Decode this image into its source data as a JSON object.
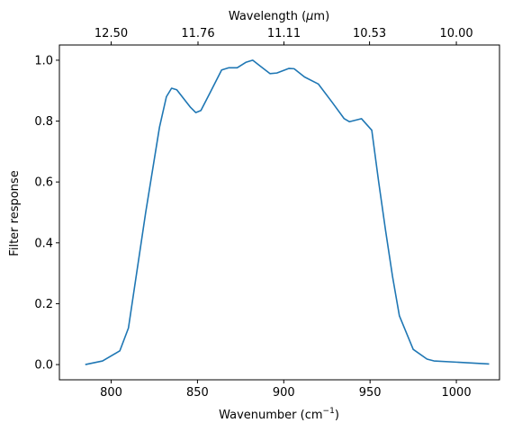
{
  "chart_data": {
    "type": "line",
    "x_axis": {
      "label_prefix": "Wavenumber (cm",
      "label_sup": "−1",
      "label_suffix": ")",
      "range": [
        770,
        1025
      ],
      "ticks": [
        800,
        850,
        900,
        950,
        1000
      ]
    },
    "top_axis": {
      "label_prefix": "Wavelength (",
      "label_mu": "μ",
      "label_suffix": "m)",
      "ticks": [
        {
          "label": "12.50",
          "wavenumber": 800
        },
        {
          "label": "11.76",
          "wavenumber": 850.3
        },
        {
          "label": "11.11",
          "wavenumber": 900.1
        },
        {
          "label": "10.53",
          "wavenumber": 949.7
        },
        {
          "label": "10.00",
          "wavenumber": 1000
        }
      ]
    },
    "y_axis": {
      "label": "Filter response",
      "range": [
        -0.05,
        1.05
      ],
      "ticks": [
        0.0,
        0.2,
        0.4,
        0.6,
        0.8,
        1.0
      ],
      "tick_labels": [
        "0.0",
        "0.2",
        "0.4",
        "0.6",
        "0.8",
        "1.0"
      ]
    },
    "grid": false,
    "series": [
      {
        "color": "#1f77b4",
        "points": [
          [
            785,
            0.0
          ],
          [
            795,
            0.012
          ],
          [
            805,
            0.045
          ],
          [
            810,
            0.12
          ],
          [
            820,
            0.5
          ],
          [
            828,
            0.78
          ],
          [
            832,
            0.88
          ],
          [
            835,
            0.908
          ],
          [
            838,
            0.903
          ],
          [
            846,
            0.845
          ],
          [
            849,
            0.828
          ],
          [
            852,
            0.835
          ],
          [
            857,
            0.89
          ],
          [
            864,
            0.968
          ],
          [
            868,
            0.975
          ],
          [
            873,
            0.975
          ],
          [
            878,
            0.993
          ],
          [
            882,
            1.0
          ],
          [
            887,
            0.978
          ],
          [
            892,
            0.956
          ],
          [
            896,
            0.958
          ],
          [
            903,
            0.973
          ],
          [
            906,
            0.972
          ],
          [
            912,
            0.945
          ],
          [
            920,
            0.922
          ],
          [
            928,
            0.862
          ],
          [
            935,
            0.808
          ],
          [
            938,
            0.798
          ],
          [
            945,
            0.808
          ],
          [
            951,
            0.77
          ],
          [
            955,
            0.6
          ],
          [
            959,
            0.44
          ],
          [
            963,
            0.29
          ],
          [
            967,
            0.16
          ],
          [
            975,
            0.05
          ],
          [
            983,
            0.018
          ],
          [
            987,
            0.012
          ],
          [
            1019,
            0.002
          ]
        ]
      }
    ]
  }
}
